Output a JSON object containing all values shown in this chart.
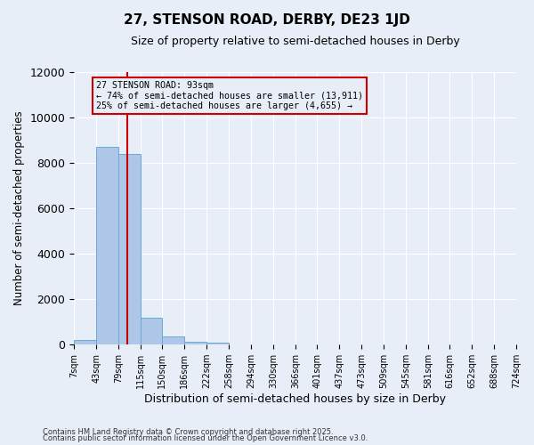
{
  "title": "27, STENSON ROAD, DERBY, DE23 1JD",
  "subtitle": "Size of property relative to semi-detached houses in Derby",
  "xlabel": "Distribution of semi-detached houses by size in Derby",
  "ylabel": "Number of semi-detached properties",
  "property_size": 93,
  "annotation_line1": "27 STENSON ROAD: 93sqm",
  "annotation_line2": "← 74% of semi-detached houses are smaller (13,911)",
  "annotation_line3": "25% of semi-detached houses are larger (4,655) →",
  "bin_edges": [
    7,
    43,
    79,
    115,
    150,
    186,
    222,
    258,
    294,
    330,
    366,
    401,
    437,
    473,
    509,
    545,
    581,
    616,
    652,
    688,
    724
  ],
  "bar_heights": [
    200,
    8700,
    8400,
    1200,
    350,
    120,
    80,
    0,
    0,
    0,
    0,
    0,
    0,
    0,
    0,
    0,
    0,
    0,
    0,
    0
  ],
  "bar_color": "#aec6e8",
  "bar_edge_color": "#6aaad4",
  "red_line_color": "#cc0000",
  "background_color": "#e8eef8",
  "grid_color": "#ffffff",
  "ylim": [
    0,
    12000
  ],
  "yticks": [
    0,
    2000,
    4000,
    6000,
    8000,
    10000,
    12000
  ],
  "footer1": "Contains HM Land Registry data © Crown copyright and database right 2025.",
  "footer2": "Contains public sector information licensed under the Open Government Licence v3.0."
}
